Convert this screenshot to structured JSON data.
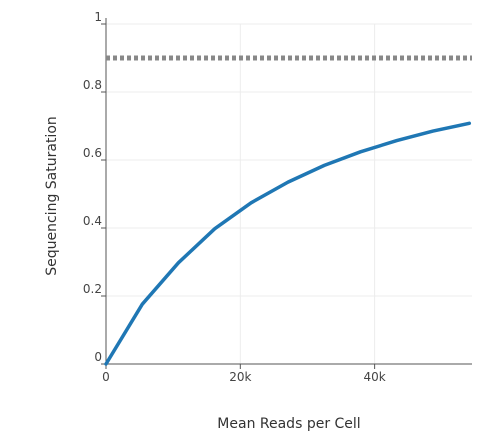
{
  "chart_data": {
    "type": "line",
    "xlabel": "Mean Reads per Cell",
    "ylabel": "Sequencing Saturation",
    "xlim": [
      0,
      54500
    ],
    "ylim": [
      0,
      1
    ],
    "x_ticks": [
      0,
      20000,
      40000
    ],
    "x_tick_labels": [
      "0",
      "20k",
      "40k"
    ],
    "y_ticks": [
      0,
      0.2,
      0.4,
      0.6,
      0.8,
      1
    ],
    "y_tick_labels": [
      "0",
      "0.2",
      "0.4",
      "0.6",
      "0.8",
      "1"
    ],
    "grid": true,
    "legend": "none",
    "series": [
      {
        "style": "solid",
        "color": "#1f77b4",
        "x": [
          0,
          5400,
          10800,
          16200,
          21600,
          27100,
          32500,
          37900,
          43300,
          48700,
          54100
        ],
        "y": [
          0,
          0.176,
          0.298,
          0.398,
          0.474,
          0.535,
          0.584,
          0.624,
          0.657,
          0.685,
          0.708
        ]
      },
      {
        "style": "dotted",
        "color": "#888888",
        "x": [
          0,
          54500
        ],
        "y": [
          0.9,
          0.9
        ]
      }
    ]
  }
}
